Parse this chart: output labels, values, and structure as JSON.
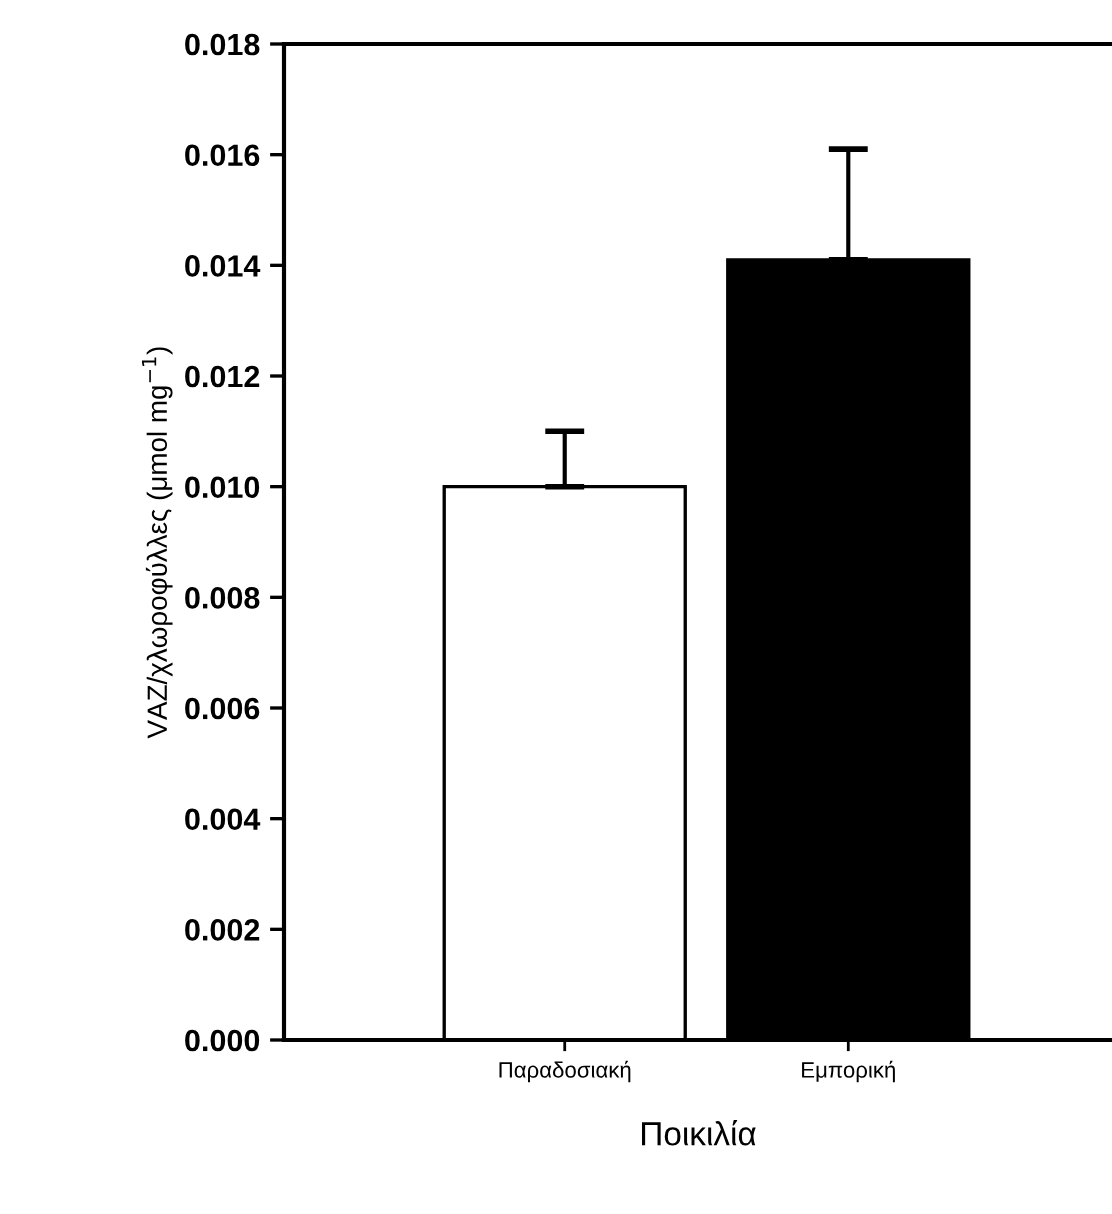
{
  "chart_data": {
    "type": "bar",
    "categories": [
      "Παραδοσιακή",
      "Εμπορική"
    ],
    "values": [
      0.01,
      0.0141
    ],
    "errors": [
      [
        0.01,
        0.011
      ],
      [
        0.0141,
        0.0161
      ]
    ],
    "colors": [
      "#ffffff",
      "#000000"
    ],
    "xlabel": "Ποικιλία",
    "ylabel": "VAZ/χλωροφύλλες (μmol mg$^{−1}$)",
    "ylim": [
      0,
      0.018
    ],
    "yticks": [
      {
        "value": 0,
        "label": "0.000"
      },
      {
        "value": 0.002,
        "label": "0.002"
      },
      {
        "value": 0.004,
        "label": "0.004"
      },
      {
        "value": 0.006,
        "label": "0.006"
      },
      {
        "value": 0.008,
        "label": "0.008"
      },
      {
        "value": 0.01,
        "label": "0.010"
      },
      {
        "value": 0.012,
        "label": "0.012"
      },
      {
        "value": 0.014,
        "label": "0.014"
      },
      {
        "value": 0.016,
        "label": "0.016"
      },
      {
        "value": 0.018,
        "label": "0.018"
      }
    ],
    "grid": false,
    "legend": false
  }
}
